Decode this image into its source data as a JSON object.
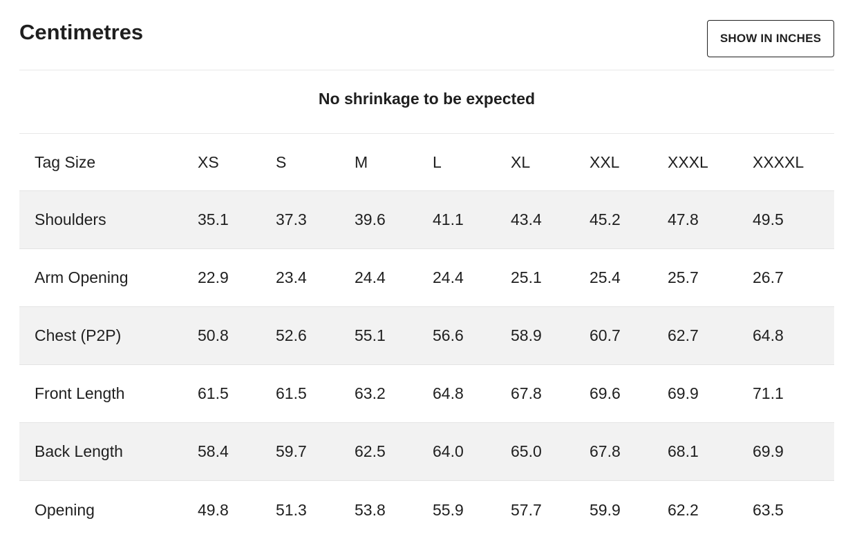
{
  "header": {
    "title": "Centimetres",
    "toggle_label": "SHOW IN INCHES"
  },
  "note": "No shrinkage to be expected",
  "table": {
    "columns": [
      "Tag Size",
      "XS",
      "S",
      "M",
      "L",
      "XL",
      "XXL",
      "XXXL",
      "XXXXL"
    ],
    "rows": [
      {
        "label": "Shoulders",
        "values": [
          "35.1",
          "37.3",
          "39.6",
          "41.1",
          "43.4",
          "45.2",
          "47.8",
          "49.5"
        ]
      },
      {
        "label": "Arm Opening",
        "values": [
          "22.9",
          "23.4",
          "24.4",
          "24.4",
          "25.1",
          "25.4",
          "25.7",
          "26.7"
        ]
      },
      {
        "label": "Chest (P2P)",
        "values": [
          "50.8",
          "52.6",
          "55.1",
          "56.6",
          "58.9",
          "60.7",
          "62.7",
          "64.8"
        ]
      },
      {
        "label": "Front Length",
        "values": [
          "61.5",
          "61.5",
          "63.2",
          "64.8",
          "67.8",
          "69.6",
          "69.9",
          "71.1"
        ]
      },
      {
        "label": "Back Length",
        "values": [
          "58.4",
          "59.7",
          "62.5",
          "64.0",
          "65.0",
          "67.8",
          "68.1",
          "69.9"
        ]
      },
      {
        "label": "Opening",
        "values": [
          "49.8",
          "51.3",
          "53.8",
          "55.9",
          "57.7",
          "59.9",
          "62.2",
          "63.5"
        ]
      }
    ]
  }
}
